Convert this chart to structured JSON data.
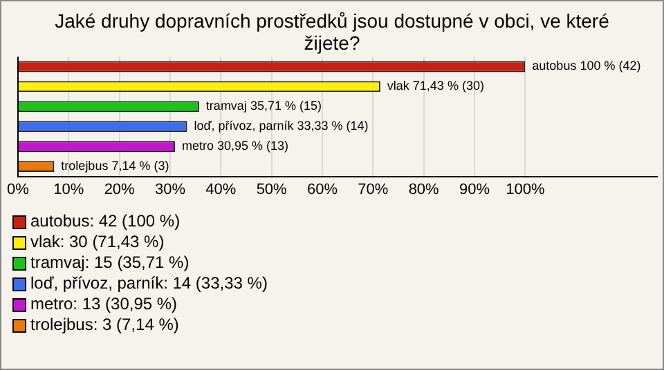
{
  "chart_data": {
    "type": "bar",
    "orientation": "horizontal",
    "title": "Jaké druhy dopravních prostředků jsou dostupné v obci, ve které žijete?",
    "categories": [
      "autobus",
      "vlak",
      "tramvaj",
      "loď, přívoz, parník",
      "metro",
      "trolejbus"
    ],
    "values": [
      100,
      71.43,
      35.71,
      33.33,
      30.95,
      7.14
    ],
    "colors": [
      "#cc1f0e",
      "#fff000",
      "#14c814",
      "#3a6ef0",
      "#c814d2",
      "#f07800"
    ],
    "value_labels": [
      "100 % (42)",
      "71,43 % (30)",
      "35,71 % (15)",
      "33,33 % (14)",
      "30,95 % (13)",
      "7,14 % (3)"
    ],
    "xlim": [
      0,
      126
    ],
    "xticks": [
      {
        "value": 0,
        "label": "0%"
      },
      {
        "value": 10,
        "label": "10%"
      },
      {
        "value": 20,
        "label": "20%"
      },
      {
        "value": 30,
        "label": "30%"
      },
      {
        "value": 40,
        "label": "40%"
      },
      {
        "value": 50,
        "label": "50%"
      },
      {
        "value": 60,
        "label": "60%"
      },
      {
        "value": 70,
        "label": "70%"
      },
      {
        "value": 80,
        "label": "80%"
      },
      {
        "value": 90,
        "label": "90%"
      },
      {
        "value": 100,
        "label": "100%"
      }
    ],
    "grid": "x",
    "tick_labels": "x",
    "annotations": [
      "autobus: 42 (100 %)",
      "vlak: 30 (71,43 %)",
      "tramvaj: 15 (35,71 %)",
      "loď, přívoz, parník: 14 (33,33 %)",
      "metro: 13 (30,95 %)",
      "trolejbus: 3 (7,14 %)"
    ]
  }
}
